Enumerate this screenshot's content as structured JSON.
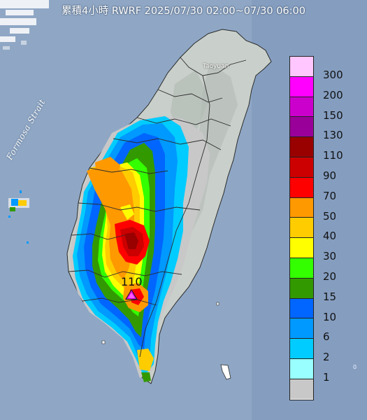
{
  "title": "累積4小時 RWRF 2025/07/30 02:00~07/30 06:00",
  "strait_label": "Formosa Strait",
  "city_label": "Taoyuan",
  "edge_mark": "0",
  "max_marker": {
    "value": "110",
    "color": "#e000e0"
  },
  "legend": {
    "items": [
      {
        "label": "300",
        "color": "#ffc6ff"
      },
      {
        "label": "200",
        "color": "#ff00ff"
      },
      {
        "label": "150",
        "color": "#cc00cc"
      },
      {
        "label": "130",
        "color": "#990099"
      },
      {
        "label": "110",
        "color": "#990000"
      },
      {
        "label": "90",
        "color": "#cc0000"
      },
      {
        "label": "70",
        "color": "#ff0000"
      },
      {
        "label": "50",
        "color": "#ff9900"
      },
      {
        "label": "40",
        "color": "#ffcc00"
      },
      {
        "label": "30",
        "color": "#ffff00"
      },
      {
        "label": "20",
        "color": "#33ff00"
      },
      {
        "label": "15",
        "color": "#339900"
      },
      {
        "label": "10",
        "color": "#0066ff"
      },
      {
        "label": "6",
        "color": "#0099ff"
      },
      {
        "label": "2",
        "color": "#00ccff"
      },
      {
        "label": "1",
        "color": "#99ffff"
      },
      {
        "label": "",
        "color": "#c8c8c8"
      }
    ]
  }
}
